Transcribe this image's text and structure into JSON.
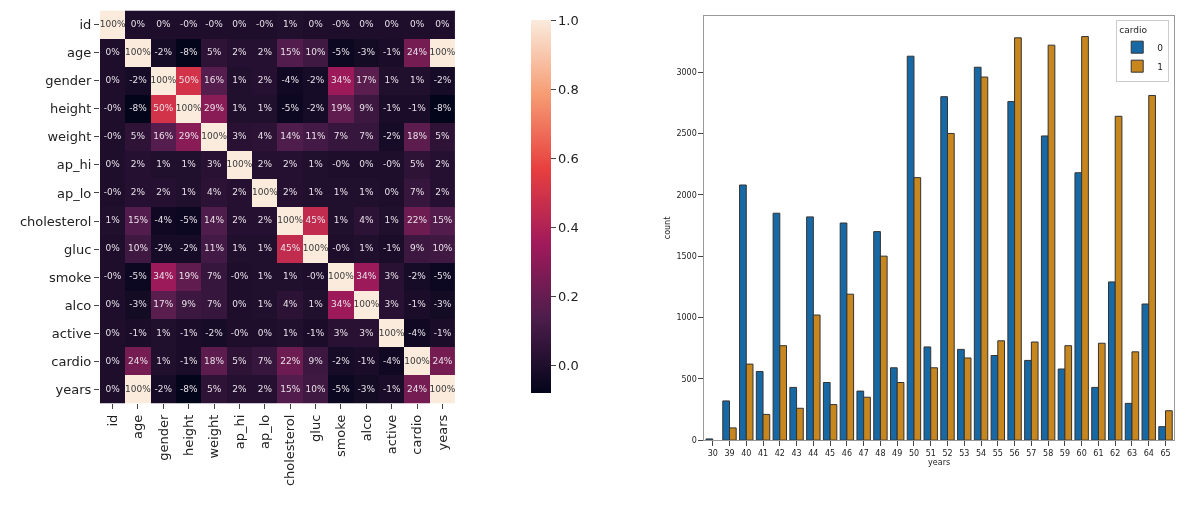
{
  "chart_data": [
    {
      "type": "heatmap",
      "categories": [
        "id",
        "age",
        "gender",
        "height",
        "weight",
        "ap_hi",
        "ap_lo",
        "cholesterol",
        "gluc",
        "smoke",
        "alco",
        "active",
        "cardio",
        "years"
      ],
      "y_categories": [
        "id",
        "age",
        "gender",
        "height",
        "weight",
        "ap_hi",
        "ap_lo",
        "cholesterol",
        "gluc",
        "smoke",
        "alco",
        "active",
        "cardio",
        "years"
      ],
      "cells": [
        [
          1.0,
          0.0,
          0.0,
          0.0,
          0.0,
          0.0,
          0.0,
          0.01,
          0.0,
          0.0,
          0.0,
          0.0,
          0.0,
          0.0
        ],
        [
          0.0,
          1.0,
          -0.02,
          -0.08,
          0.05,
          0.02,
          0.02,
          0.15,
          0.1,
          -0.05,
          -0.03,
          -0.01,
          0.24,
          1.0
        ],
        [
          0.0,
          -0.02,
          1.0,
          0.5,
          0.16,
          0.01,
          0.02,
          -0.04,
          -0.02,
          0.34,
          0.17,
          0.01,
          0.01,
          -0.02
        ],
        [
          0.0,
          -0.08,
          0.5,
          1.0,
          0.29,
          0.01,
          0.01,
          -0.05,
          -0.02,
          0.19,
          0.09,
          -0.01,
          -0.01,
          -0.08
        ],
        [
          0.0,
          0.05,
          0.16,
          0.29,
          1.0,
          0.03,
          0.04,
          0.14,
          0.11,
          0.07,
          0.07,
          -0.02,
          0.18,
          0.05
        ],
        [
          0.0,
          0.02,
          0.01,
          0.01,
          0.03,
          1.0,
          0.02,
          0.02,
          0.01,
          0.0,
          0.0,
          0.0,
          0.05,
          0.02
        ],
        [
          0.0,
          0.02,
          0.02,
          0.01,
          0.04,
          0.02,
          1.0,
          0.02,
          0.01,
          0.01,
          0.01,
          0.0,
          0.07,
          0.02
        ],
        [
          0.01,
          0.15,
          -0.04,
          -0.05,
          0.14,
          0.02,
          0.02,
          1.0,
          0.45,
          0.01,
          0.04,
          0.01,
          0.22,
          0.15
        ],
        [
          0.0,
          0.1,
          -0.02,
          -0.02,
          0.11,
          0.01,
          0.01,
          0.45,
          1.0,
          0.0,
          0.01,
          -0.01,
          0.09,
          0.1
        ],
        [
          0.0,
          -0.05,
          0.34,
          0.19,
          0.07,
          0.0,
          0.01,
          0.01,
          0.0,
          1.0,
          0.34,
          0.03,
          -0.02,
          -0.05
        ],
        [
          0.0,
          -0.03,
          0.17,
          0.09,
          0.07,
          0.0,
          0.01,
          0.04,
          0.01,
          0.34,
          1.0,
          0.03,
          -0.01,
          -0.03
        ],
        [
          0.0,
          -0.01,
          0.01,
          -0.01,
          -0.02,
          0.0,
          0.0,
          0.01,
          -0.01,
          0.03,
          0.03,
          1.0,
          -0.04,
          -0.01
        ],
        [
          0.0,
          0.24,
          0.01,
          -0.01,
          0.18,
          0.05,
          0.07,
          0.22,
          0.09,
          -0.02,
          -0.01,
          -0.04,
          1.0,
          0.24
        ],
        [
          0.0,
          1.0,
          -0.02,
          -0.08,
          0.05,
          0.02,
          0.02,
          0.15,
          0.1,
          -0.05,
          -0.03,
          -0.01,
          0.24,
          1.0
        ]
      ],
      "cell_labels": [
        [
          "100%",
          "0%",
          "0%",
          "-0%",
          "-0%",
          "0%",
          "-0%",
          "1%",
          "0%",
          "-0%",
          "0%",
          "0%",
          "0%",
          "0%"
        ],
        [
          "0%",
          "100%",
          "-2%",
          "-8%",
          "5%",
          "2%",
          "2%",
          "15%",
          "10%",
          "-5%",
          "-3%",
          "-1%",
          "24%",
          "100%"
        ],
        [
          "0%",
          "-2%",
          "100%",
          "50%",
          "16%",
          "1%",
          "2%",
          "-4%",
          "-2%",
          "34%",
          "17%",
          "1%",
          "1%",
          "-2%"
        ],
        [
          "-0%",
          "-8%",
          "50%",
          "100%",
          "29%",
          "1%",
          "1%",
          "-5%",
          "-2%",
          "19%",
          "9%",
          "-1%",
          "-1%",
          "-8%"
        ],
        [
          "-0%",
          "5%",
          "16%",
          "29%",
          "100%",
          "3%",
          "4%",
          "14%",
          "11%",
          "7%",
          "7%",
          "-2%",
          "18%",
          "5%"
        ],
        [
          "0%",
          "2%",
          "1%",
          "1%",
          "3%",
          "100%",
          "2%",
          "2%",
          "1%",
          "-0%",
          "0%",
          "-0%",
          "5%",
          "2%"
        ],
        [
          "-0%",
          "2%",
          "2%",
          "1%",
          "4%",
          "2%",
          "100%",
          "2%",
          "1%",
          "1%",
          "1%",
          "0%",
          "7%",
          "2%"
        ],
        [
          "1%",
          "15%",
          "-4%",
          "-5%",
          "14%",
          "2%",
          "2%",
          "100%",
          "45%",
          "1%",
          "4%",
          "1%",
          "22%",
          "15%"
        ],
        [
          "0%",
          "10%",
          "-2%",
          "-2%",
          "11%",
          "1%",
          "1%",
          "45%",
          "100%",
          "-0%",
          "1%",
          "-1%",
          "9%",
          "10%"
        ],
        [
          "-0%",
          "-5%",
          "34%",
          "19%",
          "7%",
          "-0%",
          "1%",
          "1%",
          "-0%",
          "100%",
          "34%",
          "3%",
          "-2%",
          "-5%"
        ],
        [
          "0%",
          "-3%",
          "17%",
          "9%",
          "7%",
          "0%",
          "1%",
          "4%",
          "1%",
          "34%",
          "100%",
          "3%",
          "-1%",
          "-3%"
        ],
        [
          "0%",
          "-1%",
          "1%",
          "-1%",
          "-2%",
          "-0%",
          "0%",
          "1%",
          "-1%",
          "3%",
          "3%",
          "100%",
          "-4%",
          "-1%"
        ],
        [
          "0%",
          "24%",
          "1%",
          "-1%",
          "18%",
          "5%",
          "7%",
          "22%",
          "9%",
          "-2%",
          "-1%",
          "-4%",
          "100%",
          "24%"
        ],
        [
          "0%",
          "100%",
          "-2%",
          "-8%",
          "5%",
          "2%",
          "2%",
          "15%",
          "10%",
          "-5%",
          "-3%",
          "-1%",
          "24%",
          "100%"
        ]
      ],
      "clim": [
        -0.08,
        1.0
      ],
      "cticks": [
        {
          "value": 0,
          "label": "0.0"
        },
        {
          "value": 0.2,
          "label": "0.2"
        },
        {
          "value": 0.4,
          "label": "0.4"
        },
        {
          "value": 0.6,
          "label": "0.6"
        },
        {
          "value": 0.8,
          "label": "0.8"
        },
        {
          "value": 1,
          "label": "1.0"
        }
      ]
    },
    {
      "type": "bar",
      "categories": [
        "30",
        "39",
        "40",
        "41",
        "42",
        "43",
        "44",
        "45",
        "46",
        "47",
        "48",
        "49",
        "50",
        "51",
        "52",
        "53",
        "54",
        "55",
        "56",
        "57",
        "58",
        "59",
        "60",
        "61",
        "62",
        "63",
        "64",
        "65"
      ],
      "series": [
        {
          "name": "0",
          "color": "#1769a6",
          "values": [
            10,
            320,
            2080,
            560,
            1850,
            430,
            1820,
            470,
            1770,
            400,
            1700,
            590,
            3130,
            760,
            2800,
            740,
            3040,
            690,
            2760,
            650,
            2480,
            580,
            2180,
            430,
            1290,
            300,
            1110,
            110
          ]
        },
        {
          "name": "1",
          "color": "#c8861f",
          "values": [
            null,
            100,
            620,
            210,
            770,
            260,
            1020,
            290,
            1190,
            350,
            1500,
            470,
            2140,
            590,
            2500,
            670,
            2960,
            810,
            3280,
            800,
            3220,
            770,
            3290,
            790,
            2640,
            720,
            2810,
            240
          ]
        }
      ],
      "xlabel": "years",
      "ylabel": "count",
      "legend_title": "cardio",
      "legend": "top right",
      "ylim": [
        0,
        3460
      ],
      "yticks": [
        0,
        500,
        1000,
        1500,
        2000,
        2500,
        3000
      ]
    }
  ]
}
